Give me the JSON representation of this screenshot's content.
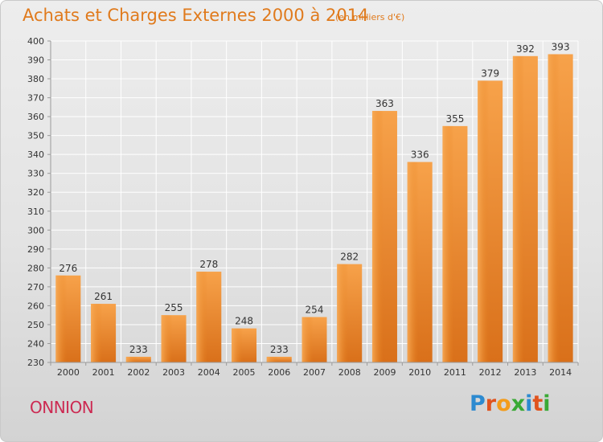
{
  "title": "Achats et Charges Externes 2000 à 2014",
  "subtitle": "(en milliers d'€)",
  "commune": "ONNION",
  "logo": {
    "text": "Proxiti",
    "colors": [
      "#2c8ad0",
      "#e0531e",
      "#f39c1a",
      "#3aa935",
      "#2c8ad0",
      "#e0531e",
      "#3aa935"
    ]
  },
  "chart_data": {
    "type": "bar",
    "categories": [
      "2000",
      "2001",
      "2002",
      "2003",
      "2004",
      "2005",
      "2006",
      "2007",
      "2008",
      "2009",
      "2010",
      "2011",
      "2012",
      "2013",
      "2014"
    ],
    "values": [
      276,
      261,
      233,
      255,
      278,
      248,
      233,
      254,
      282,
      363,
      336,
      355,
      379,
      392,
      393
    ],
    "ylim": [
      230,
      400
    ],
    "yticks": [
      230,
      240,
      250,
      260,
      270,
      280,
      290,
      300,
      310,
      320,
      330,
      340,
      350,
      360,
      370,
      380,
      390,
      400
    ],
    "grid": true,
    "bar_color": "#f0922e"
  }
}
